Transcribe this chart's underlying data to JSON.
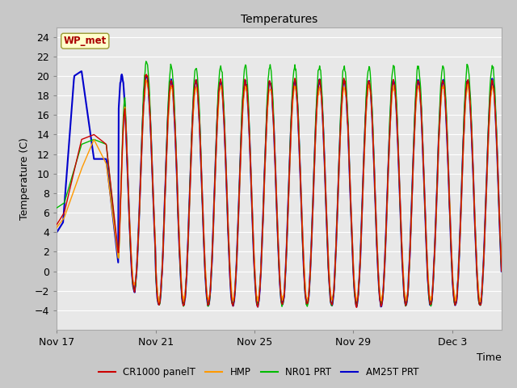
{
  "title": "Temperatures",
  "xlabel": "Time",
  "ylabel": "Temperature (C)",
  "ylim": [
    -6,
    25
  ],
  "yticks": [
    -4,
    -2,
    0,
    2,
    4,
    6,
    8,
    10,
    12,
    14,
    16,
    18,
    20,
    22,
    24
  ],
  "fig_bg": "#c8c8c8",
  "plot_bg": "#e8e8e8",
  "grid_color": "#ffffff",
  "annotation_text": "WP_met",
  "annotation_box_color": "#ffffcc",
  "annotation_text_color": "#aa0000",
  "series": {
    "CR1000_panelT": {
      "color": "#cc0000",
      "label": "CR1000 panelT",
      "lw": 1.0
    },
    "HMP": {
      "color": "#ff9900",
      "label": "HMP",
      "lw": 1.0
    },
    "NR01_PRT": {
      "color": "#00bb00",
      "label": "NR01 PRT",
      "lw": 1.0
    },
    "AM25T_PRT": {
      "color": "#0000cc",
      "label": "AM25T PRT",
      "lw": 1.5
    }
  },
  "x_tick_labels": [
    "Nov 17",
    "Nov 21",
    "Nov 25",
    "Nov 29",
    "Dec 3"
  ],
  "x_tick_positions_days": [
    0,
    4,
    8,
    12,
    16
  ],
  "total_days": 18,
  "title_fontsize": 10,
  "axis_label_fontsize": 9,
  "tick_fontsize": 9
}
